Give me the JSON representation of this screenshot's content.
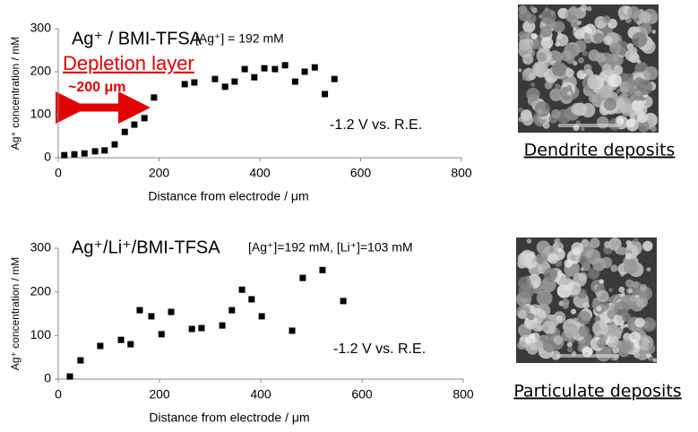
{
  "chart_data": [
    {
      "type": "scatter",
      "title": "Ag⁺ / BMI-TFSA",
      "subtitle": "[Ag⁺] = 192 mM",
      "x_label": "Distance from electrode / μm",
      "y_label": "Ag⁺ concentration / mM",
      "annotations": [
        "Depletion layer",
        "~200 μm",
        "-1.2 V vs. R.E."
      ],
      "x": [
        12,
        32,
        52,
        73,
        92,
        112,
        132,
        151,
        171,
        190,
        251,
        270,
        311,
        331,
        350,
        370,
        389,
        409,
        430,
        450,
        470,
        489,
        509,
        529,
        548
      ],
      "values": [
        6,
        8,
        10,
        15,
        17,
        31,
        60,
        77,
        92,
        140,
        171,
        175,
        183,
        165,
        177,
        206,
        187,
        208,
        206,
        215,
        177,
        200,
        210,
        148,
        183
      ],
      "color": "#000000",
      "xlim": [
        0,
        800
      ],
      "ylim": [
        0,
        300
      ],
      "xticks": [
        0,
        200,
        400,
        600,
        800
      ],
      "yticks": [
        0,
        100,
        200,
        300
      ]
    },
    {
      "type": "scatter",
      "title": "Ag⁺/Li⁺/BMI-TFSA",
      "subtitle": "[Ag⁺]=192 mM, [Li⁺]=103 mM",
      "x_label": "Distance from electrode / μm",
      "y_label": "Ag⁺ concentration / mM",
      "annotations": [
        "-1.2 V vs. R.E."
      ],
      "x": [
        23,
        44,
        83,
        124,
        143,
        161,
        184,
        204,
        223,
        264,
        283,
        324,
        343,
        363,
        382,
        402,
        462,
        483,
        522,
        563
      ],
      "values": [
        6,
        43,
        76,
        90,
        80,
        158,
        144,
        103,
        154,
        115,
        117,
        123,
        158,
        205,
        183,
        144,
        111,
        232,
        250,
        179
      ],
      "color": "#000000",
      "xlim": [
        0,
        800
      ],
      "ylim": [
        0,
        300
      ],
      "xticks": [
        0,
        200,
        400,
        600,
        800
      ],
      "yticks": [
        0,
        100,
        200,
        300
      ]
    }
  ],
  "images": [
    {
      "caption": "Dendrite deposits"
    },
    {
      "caption": "Particulate deposits"
    }
  ]
}
